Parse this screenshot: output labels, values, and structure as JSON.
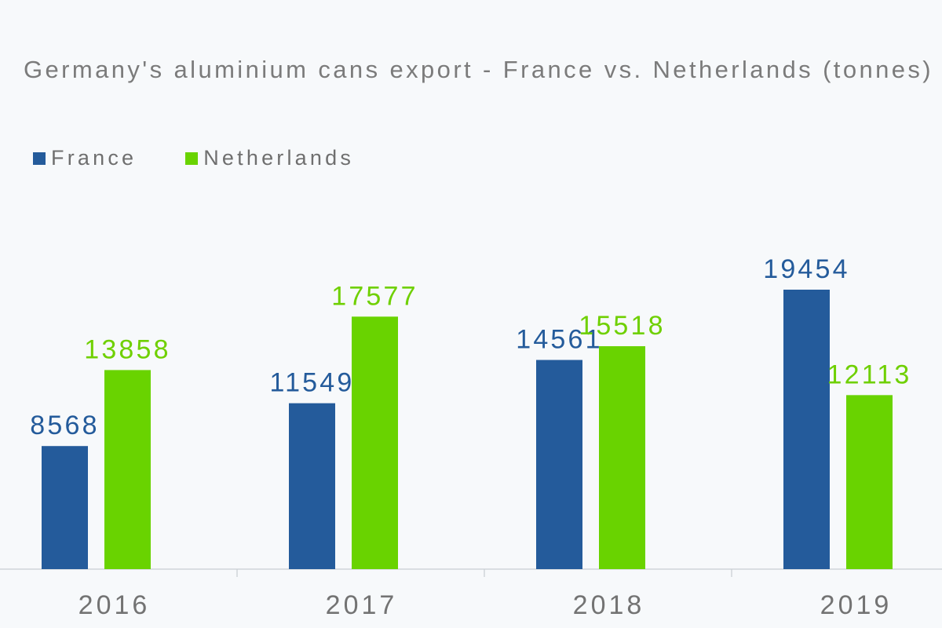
{
  "chart_data": {
    "type": "bar",
    "title": "Germany's aluminium cans export - France vs. Netherlands (tonnes)",
    "categories": [
      "2016",
      "2017",
      "2018",
      "2019"
    ],
    "series": [
      {
        "name": "France",
        "values": [
          8568,
          11549,
          14561,
          19454
        ],
        "color": "#245b9b",
        "label_color": "#245b9b"
      },
      {
        "name": "Netherlands",
        "values": [
          13858,
          17577,
          15518,
          12113
        ],
        "color": "#69d300",
        "label_color": "#6fd000"
      }
    ],
    "xlabel": "",
    "ylabel": "",
    "ylim": [
      0,
      19454
    ],
    "grid": false,
    "legend": "top-left"
  }
}
